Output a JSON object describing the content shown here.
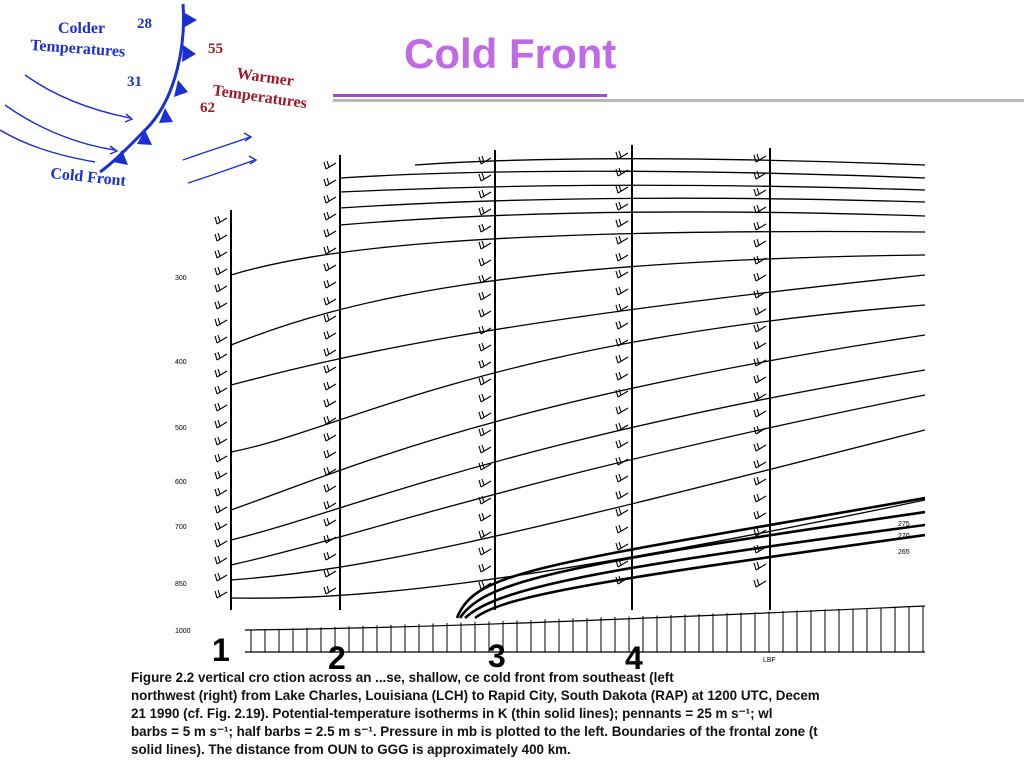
{
  "slide": {
    "title": "Cold Front"
  },
  "inset_map": {
    "colder_label_1": "Colder",
    "colder_label_2": "Temperatures",
    "warmer_label_1": "Warmer",
    "warmer_label_2": "Temperatures",
    "front_label": "Cold Front",
    "cold_temps": [
      "28",
      "31"
    ],
    "warm_temps": [
      "55",
      "62"
    ],
    "colors": {
      "cold": "#1a2fd4",
      "warm": "#a01828"
    }
  },
  "cross_section": {
    "pressure_labels": [
      "300",
      "400",
      "500",
      "600",
      "700",
      "850",
      "1000"
    ],
    "isotherm_labels": [
      "275",
      "270",
      "265"
    ],
    "station_small_label": "LBF",
    "station_numbers": [
      "1",
      "2",
      "3",
      "4"
    ]
  },
  "caption": {
    "lines": [
      "Figure 2.2\u0002  vertical cro  ction across an  ...se, shallow,       ce cold front from southeast (left",
      "northwest (right) from Lake Charles, Louisiana (LCH) to Rapid City, South Dakota (RAP) at 1200 UTC, Decem",
      "21 1990 (cf. Fig. 2.19). Potential-temperature isotherms in K (thin solid lines); pennants = 25 m s⁻¹; wl",
      "barbs = 5 m s⁻¹; half barbs = 2.5 m s⁻¹. Pressure in mb is plotted to the left. Boundaries of the frontal zone (t",
      "solid lines). The distance from OUN to GGG is approximately 400 km."
    ]
  }
}
